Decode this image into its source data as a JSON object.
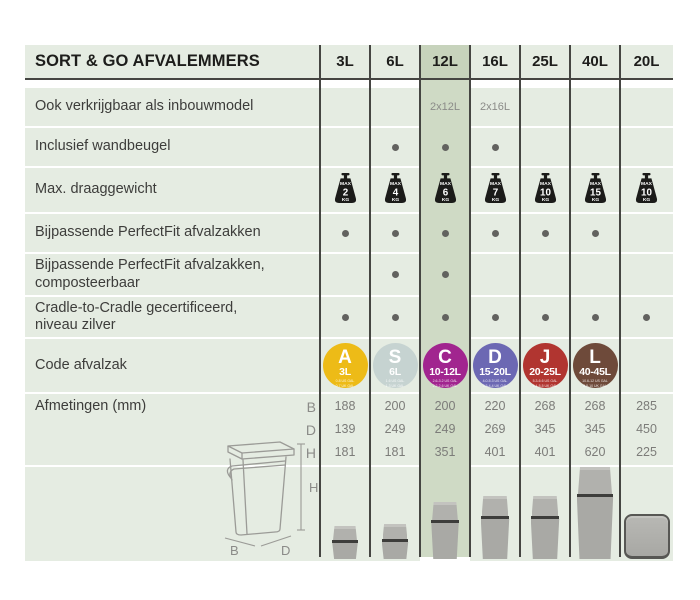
{
  "table": {
    "title": "SORT & GO AFVALEMMERS",
    "columns": [
      "3L",
      "6L",
      "12L",
      "16L",
      "25L",
      "40L",
      "20L"
    ],
    "highlighted_column": "12L",
    "rows": [
      {
        "key": "inbouwmodel",
        "label": "Ook verkrijgbaar als inbouwmodel",
        "type": "text",
        "values": [
          "",
          "",
          "2x12L",
          "2x16L",
          "",
          "",
          ""
        ]
      },
      {
        "key": "wandbeugel",
        "label": "Inclusief wandbeugel",
        "type": "dot",
        "values": [
          0,
          1,
          1,
          1,
          0,
          0,
          0
        ]
      },
      {
        "key": "draaggewicht",
        "label": "Max. draaggewicht",
        "type": "weight",
        "max_label": "MAX",
        "unit_label": "KG",
        "values": [
          "2",
          "4",
          "6",
          "7",
          "10",
          "15",
          "10"
        ]
      },
      {
        "key": "perfectfit",
        "label": "Bijpassende PerfectFit afvalzakken",
        "type": "dot",
        "values": [
          1,
          1,
          1,
          1,
          1,
          1,
          0
        ]
      },
      {
        "key": "perfectfit-composteerbaar",
        "label": "Bijpassende PerfectFit afvalzakken,\ncomposteerbaar",
        "type": "dot",
        "values": [
          0,
          1,
          1,
          0,
          0,
          0,
          0
        ]
      },
      {
        "key": "cradle-to-cradle",
        "label": "Cradle-to-Cradle gecertificeerd,\nniveau zilver",
        "type": "dot",
        "values": [
          1,
          1,
          1,
          1,
          1,
          1,
          1
        ]
      },
      {
        "key": "code-afvalzak",
        "label": "Code afvalzak",
        "type": "badge",
        "values": [
          {
            "code": "A",
            "range": "3L",
            "color": "#edbb17",
            "sub": [
              "0.8 US GAL",
              "0.7 UK GAL"
            ]
          },
          {
            "code": "S",
            "range": "6L",
            "color": "#c6d3d1",
            "sub": [
              "1.6 US GAL",
              "1.3 UK GAL"
            ]
          },
          {
            "code": "C",
            "range": "10-12L",
            "color": "#a1258f",
            "sub": [
              "2.6-3.2 US GAL",
              "2.2-2.6 UK GAL"
            ]
          },
          {
            "code": "D",
            "range": "15-20L",
            "color": "#6c68b3",
            "sub": [
              "4.0-5.3 US GAL",
              "3.3-4.4 UK GAL"
            ]
          },
          {
            "code": "J",
            "range": "20-25L",
            "color": "#b13530",
            "sub": [
              "5.3-6.6 US GAL",
              "4.4-5.5 UK GAL"
            ]
          },
          {
            "code": "L",
            "range": "40-45L",
            "color": "#6e4a3a",
            "sub": [
              "10.6-12 US GAL",
              "8.8-10 UK GAL"
            ]
          },
          null
        ]
      },
      {
        "key": "afmetingen",
        "label": "Afmetingen (mm)",
        "type": "dims",
        "letters": [
          "B",
          "D",
          "H"
        ],
        "B": [
          "188",
          "200",
          "200",
          "220",
          "268",
          "268",
          "285"
        ],
        "D": [
          "139",
          "249",
          "249",
          "269",
          "345",
          "345",
          "450"
        ],
        "H": [
          "181",
          "181",
          "351",
          "401",
          "401",
          "620",
          "225"
        ]
      }
    ],
    "diagram_labels": {
      "B": "B",
      "D": "D",
      "H": "H"
    }
  },
  "colors": {
    "row_bg": "#e5ece2",
    "highlight_bg": "#cfdac5",
    "highlight_header_bg": "#c7d3bc",
    "grid_line": "#454542",
    "dot": "#62625f",
    "label_text": "#3d3d3b",
    "muted_text": "#8b8b88",
    "dimension_text": "#7c7c79",
    "header_text": "#1d1d1b",
    "weight_icon": "#1b1b19",
    "bin_gray": "#a9a9a5"
  }
}
